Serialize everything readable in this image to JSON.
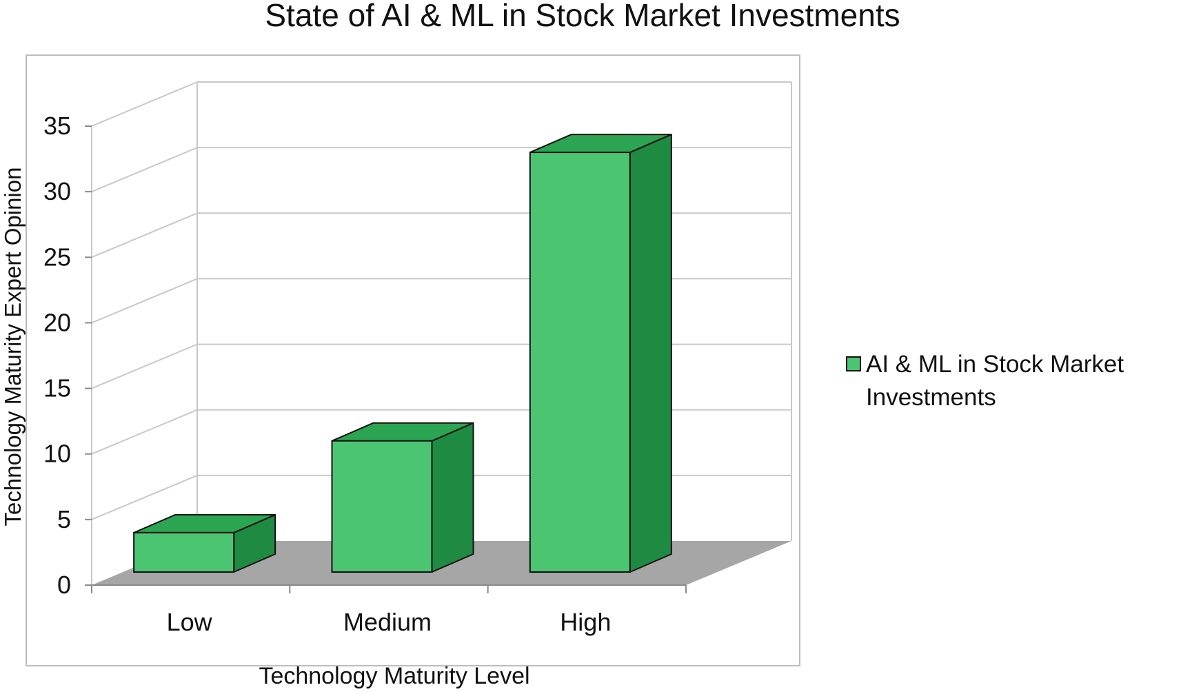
{
  "chart_data": {
    "type": "bar",
    "title": "State of AI & ML in Stock Market Investments",
    "xlabel": "Technology Maturity Level",
    "ylabel": "Technology Maturity  Expert Opinion",
    "categories": [
      "Low",
      "Medium",
      "High"
    ],
    "series": [
      {
        "name": "AI & ML in Stock Market Investments",
        "values": [
          3,
          10,
          32
        ]
      }
    ],
    "ylim": [
      0,
      35
    ],
    "yticks": [
      "0",
      "5",
      "10",
      "15",
      "20",
      "25",
      "30",
      "35"
    ],
    "grid": true,
    "legend": "right",
    "style": "3d",
    "colors": {
      "bar_front": "#4cc573",
      "bar_top": "#2ba552",
      "bar_side": "#1e8a42",
      "floor": "#a6a6a6",
      "gridline": "#c8c8c8",
      "frame": "#bdbdbd"
    }
  }
}
